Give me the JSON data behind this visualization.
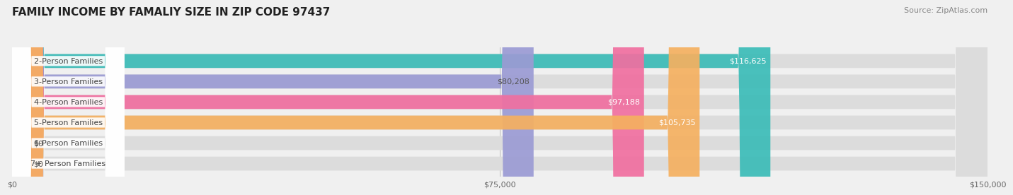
{
  "title": "FAMILY INCOME BY FAMALIY SIZE IN ZIP CODE 97437",
  "source": "Source: ZipAtlas.com",
  "categories": [
    "2-Person Families",
    "3-Person Families",
    "4-Person Families",
    "5-Person Families",
    "6-Person Families",
    "7+ Person Families"
  ],
  "values": [
    116625,
    80208,
    97188,
    105735,
    0,
    0
  ],
  "bar_colors": [
    "#3bbcb8",
    "#9b9bd4",
    "#f06fa0",
    "#f5b060",
    "#f0a0a8",
    "#a8c8e8"
  ],
  "label_colors": [
    "#ffffff",
    "#555555",
    "#ffffff",
    "#ffffff",
    "#555555",
    "#555555"
  ],
  "x_max": 150000,
  "x_ticks": [
    0,
    75000,
    150000
  ],
  "x_tick_labels": [
    "$0",
    "$75,000",
    "$150,000"
  ],
  "background_color": "#f0f0f0",
  "title_fontsize": 11,
  "source_fontsize": 8,
  "label_fontsize": 8,
  "value_fontsize": 8
}
